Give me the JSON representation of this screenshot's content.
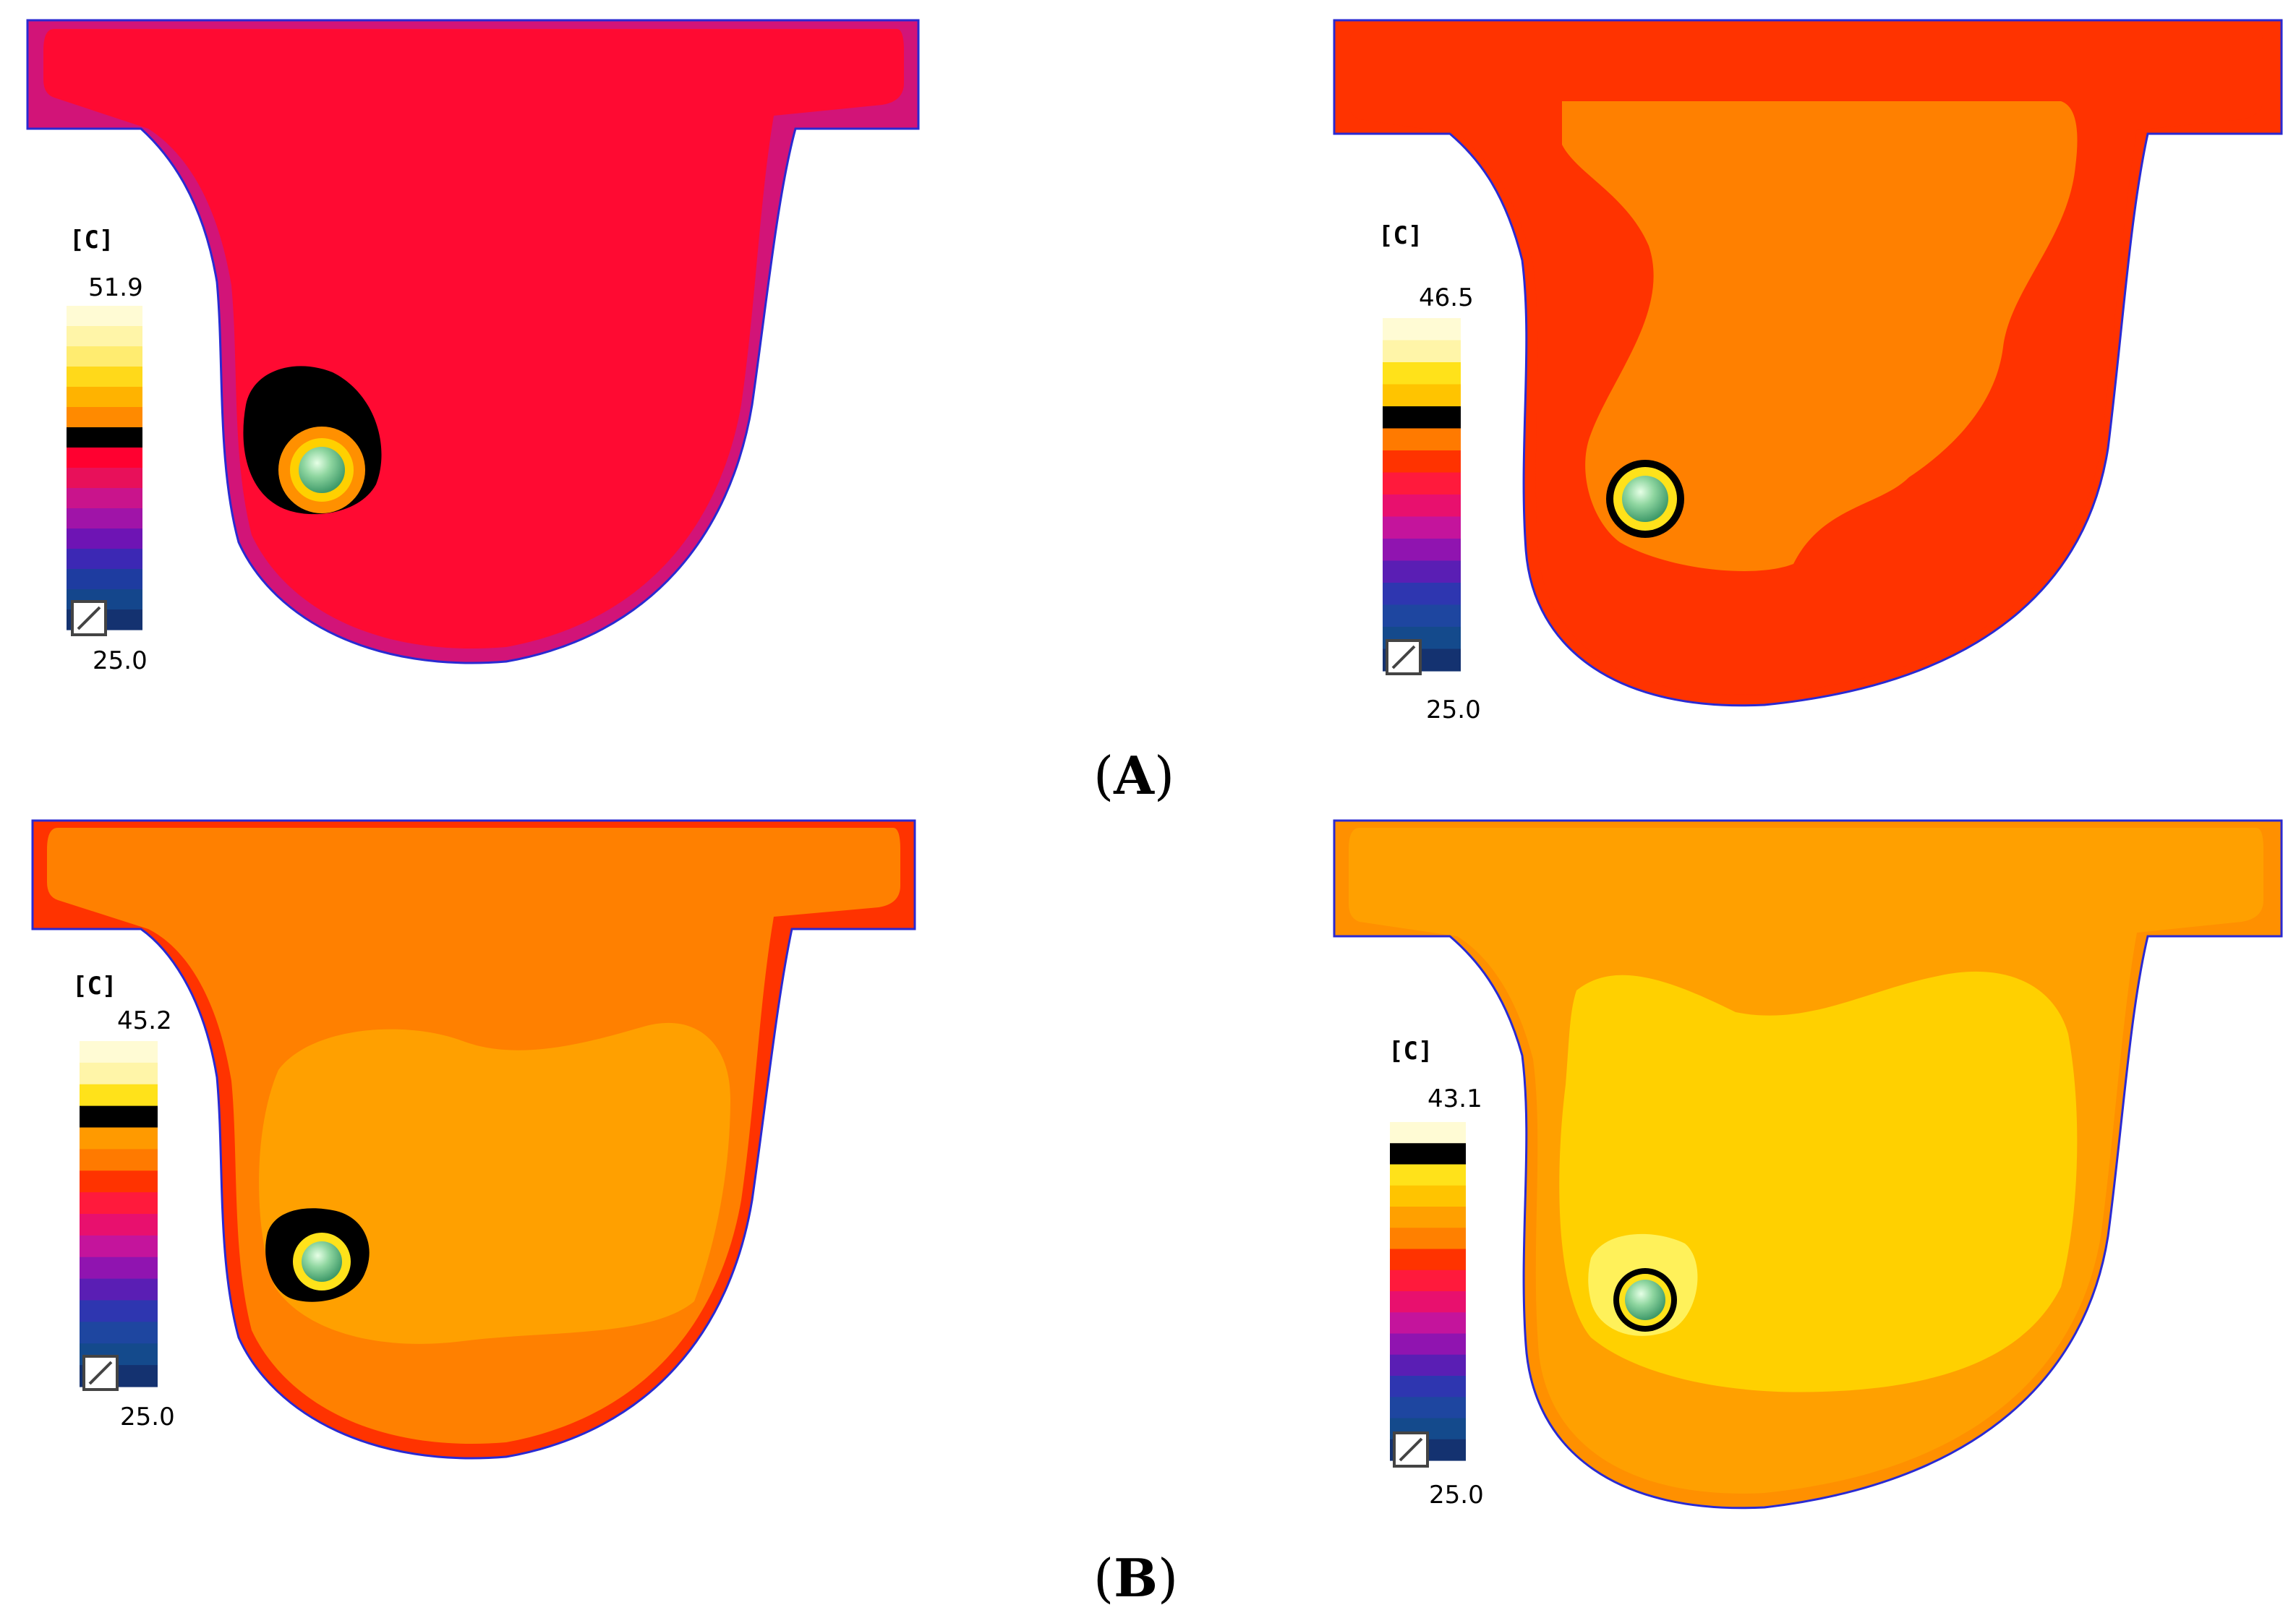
{
  "figure": {
    "labels": {
      "a": "A",
      "b": "B"
    },
    "panels": [
      {
        "id": "a-left",
        "unit": "[C]",
        "max": "51.9",
        "min": "25.0",
        "palette": [
          "#fffbd4",
          "#fff5a8",
          "#ffec70",
          "#ffd91a",
          "#ffb300",
          "#ff8a00",
          "#000000",
          "#ff0030",
          "#e8105a",
          "#c9148c",
          "#a014a8",
          "#6e14b4",
          "#3c28b4",
          "#1e3ca0",
          "#14468c",
          "#143270"
        ],
        "body_color": "#ff0a32",
        "rim_color": "#d21478",
        "halo_color": "#000000",
        "has_inner_region": false
      },
      {
        "id": "a-right",
        "unit": "[C]",
        "max": "46.5",
        "min": "25.0",
        "palette": [
          "#fffbd4",
          "#fff5a8",
          "#ffe21a",
          "#ffc400",
          "#000000",
          "#ff7a00",
          "#ff3300",
          "#ff1a3c",
          "#e8106e",
          "#c4149c",
          "#9014b0",
          "#5a1eb4",
          "#2e36b0",
          "#1e46a0",
          "#144a8c",
          "#143270"
        ],
        "body_color": "#ff3300",
        "rim_color": "#ff3300",
        "halo_color": "#000000",
        "has_inner_region": true,
        "inner_color": "#ff8000"
      },
      {
        "id": "b-left",
        "unit": "[C]",
        "max": "45.2",
        "min": "25.0",
        "palette": [
          "#fffbd4",
          "#fff5a8",
          "#ffe21a",
          "#000000",
          "#ff9a00",
          "#ff7a00",
          "#ff3300",
          "#ff1a3c",
          "#e8106e",
          "#c4149c",
          "#9014b0",
          "#5a1eb4",
          "#2e36b0",
          "#1e46a0",
          "#144a8c",
          "#143270"
        ],
        "body_color": "#ff8000",
        "rim_color": "#ff3300",
        "halo_color": "#000000",
        "has_inner_region": true,
        "inner_color": "#ffa000"
      },
      {
        "id": "b-right",
        "unit": "[C]",
        "max": "43.1",
        "min": "25.0",
        "palette": [
          "#fffbd4",
          "#000000",
          "#ffe21a",
          "#ffc400",
          "#ffa000",
          "#ff8000",
          "#ff3300",
          "#ff1a3c",
          "#e8106e",
          "#c4149c",
          "#9014b0",
          "#5a1eb4",
          "#2e36b0",
          "#1e46a0",
          "#144a8c",
          "#143270"
        ],
        "body_color": "#ffa000",
        "rim_color": "#ff9000",
        "halo_color": "#000000",
        "has_inner_region": true,
        "inner_color": "#ffd000"
      }
    ]
  }
}
